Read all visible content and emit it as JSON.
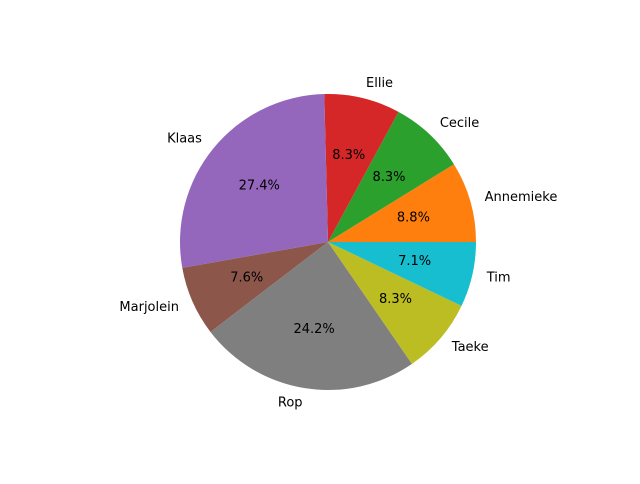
{
  "chart_data": {
    "type": "pie",
    "title": "",
    "slices": [
      {
        "label": "Annemieke",
        "value": 8.8,
        "pct_label": "8.8%",
        "color": "#ff7f0e"
      },
      {
        "label": "Cecile",
        "value": 8.3,
        "pct_label": "8.3%",
        "color": "#2ca02c"
      },
      {
        "label": "Ellie",
        "value": 8.3,
        "pct_label": "8.3%",
        "color": "#d62728"
      },
      {
        "label": "Klaas",
        "value": 27.4,
        "pct_label": "27.4%",
        "color": "#9467bd"
      },
      {
        "label": "Marjolein",
        "value": 7.6,
        "pct_label": "7.6%",
        "color": "#8c564b"
      },
      {
        "label": "Rop",
        "value": 24.2,
        "pct_label": "24.2%",
        "color": "#7f7f7f"
      },
      {
        "label": "Taeke",
        "value": 8.3,
        "pct_label": "8.3%",
        "color": "#bcbd22"
      },
      {
        "label": "Tim",
        "value": 7.1,
        "pct_label": "7.1%",
        "color": "#17becf"
      }
    ],
    "start_angle_deg": 0,
    "direction": "counterclockwise",
    "legend": "none",
    "grid": false
  }
}
